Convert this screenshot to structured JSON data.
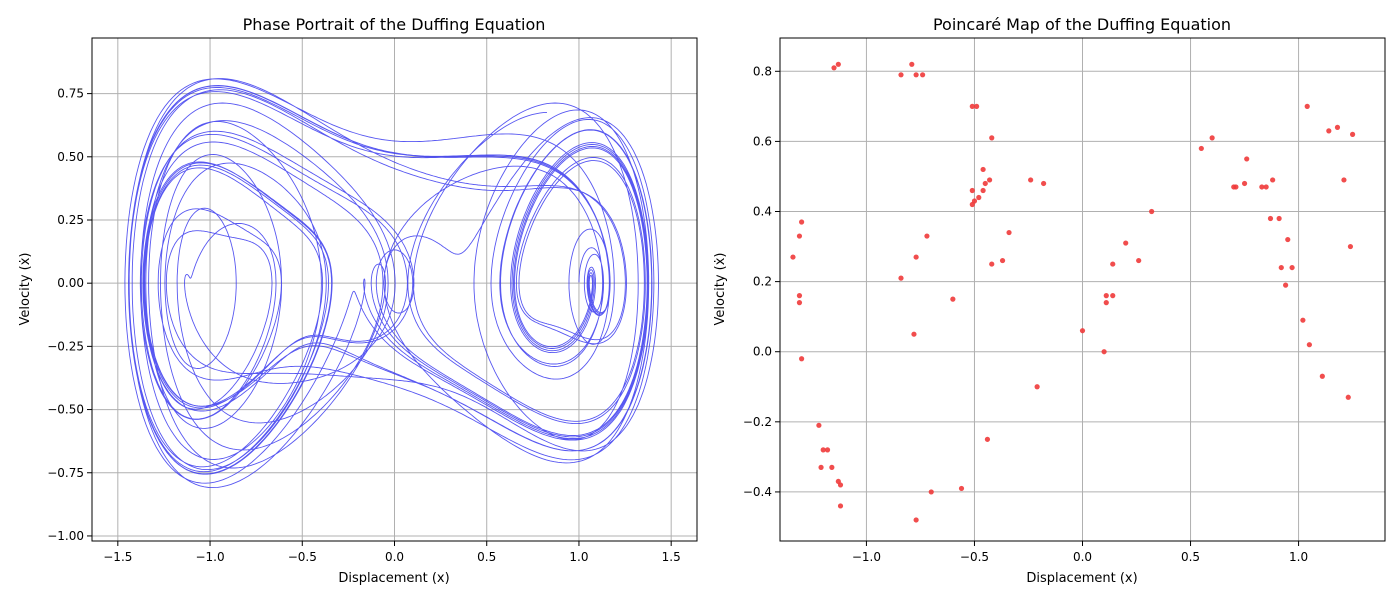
{
  "colors": {
    "trajectory": "#3a3aef",
    "points": "#ef3a3a",
    "grid": "#b0b0b0",
    "axes": "#000000"
  },
  "chart_data": [
    {
      "type": "line",
      "title": "Phase Portrait of the Duffing Equation",
      "xlabel": "Displacement (x)",
      "ylabel": "Velocity (ẋ)",
      "xlim": [
        -1.64,
        1.64
      ],
      "ylim": [
        -1.02,
        0.97
      ],
      "xticks": [
        -1.5,
        -1.0,
        -0.5,
        0.0,
        0.5,
        1.0,
        1.5
      ],
      "xtick_labels": [
        "−1.5",
        "−1.0",
        "−0.5",
        "0.0",
        "0.5",
        "1.0",
        "1.5"
      ],
      "yticks": [
        -1.0,
        -0.75,
        -0.5,
        -0.25,
        0.0,
        0.25,
        0.5,
        0.75
      ],
      "ytick_labels": [
        "−1.00",
        "−0.75",
        "−0.50",
        "−0.25",
        "0.00",
        "0.25",
        "0.50",
        "0.75"
      ],
      "grid": true,
      "series": [
        {
          "description_points": [
            [
              -1.0,
              0.0
            ],
            [
              -0.88,
              0.6
            ],
            [
              -0.3,
              0.55
            ],
            [
              0.3,
              0.6
            ],
            [
              1.1,
              0.8
            ],
            [
              1.45,
              0.0
            ],
            [
              1.1,
              -0.8
            ],
            [
              0.3,
              -0.55
            ],
            [
              -0.3,
              -0.55
            ],
            [
              -0.9,
              -0.93
            ],
            [
              -1.42,
              -0.1
            ],
            [
              -1.0,
              0.0
            ]
          ]
        }
      ]
    },
    {
      "type": "scatter",
      "title": "Poincaré Map of the Duffing Equation",
      "xlabel": "Displacement (x)",
      "ylabel": "Velocity (ẋ)",
      "xlim": [
        -1.4,
        1.4
      ],
      "ylim": [
        -0.54,
        0.895
      ],
      "xticks": [
        -1.0,
        -0.5,
        0.0,
        0.5,
        1.0
      ],
      "xtick_labels": [
        "−1.0",
        "−0.5",
        "0.0",
        "0.5",
        "1.0"
      ],
      "yticks": [
        -0.4,
        -0.2,
        0.0,
        0.2,
        0.4,
        0.6,
        0.8
      ],
      "ytick_labels": [
        "−0.4",
        "−0.2",
        "0.0",
        "0.2",
        "0.4",
        "0.6",
        "0.8"
      ],
      "grid": true,
      "points": [
        [
          -1.13,
          0.82
        ],
        [
          -1.15,
          0.81
        ],
        [
          -0.79,
          0.82
        ],
        [
          -0.84,
          0.79
        ],
        [
          -0.77,
          0.79
        ],
        [
          -0.74,
          0.79
        ],
        [
          -0.51,
          0.7
        ],
        [
          -0.49,
          0.7
        ],
        [
          -0.42,
          0.61
        ],
        [
          -0.24,
          0.49
        ],
        [
          -0.18,
          0.48
        ],
        [
          -0.43,
          0.49
        ],
        [
          -0.45,
          0.48
        ],
        [
          -0.46,
          0.52
        ],
        [
          -0.51,
          0.46
        ],
        [
          -0.46,
          0.46
        ],
        [
          -0.48,
          0.44
        ],
        [
          -0.5,
          0.43
        ],
        [
          -0.51,
          0.42
        ],
        [
          -0.34,
          0.34
        ],
        [
          -0.37,
          0.26
        ],
        [
          -0.42,
          0.25
        ],
        [
          -1.3,
          0.37
        ],
        [
          -1.31,
          0.33
        ],
        [
          -1.34,
          0.27
        ],
        [
          -1.31,
          0.16
        ],
        [
          -1.31,
          0.14
        ],
        [
          -1.3,
          -0.02
        ],
        [
          -0.72,
          0.33
        ],
        [
          -0.77,
          0.27
        ],
        [
          -0.84,
          0.21
        ],
        [
          -0.6,
          0.15
        ],
        [
          -0.78,
          0.05
        ],
        [
          -1.22,
          -0.21
        ],
        [
          -1.2,
          -0.28
        ],
        [
          -1.18,
          -0.28
        ],
        [
          -1.21,
          -0.33
        ],
        [
          -1.16,
          -0.33
        ],
        [
          -1.13,
          -0.37
        ],
        [
          -1.12,
          -0.38
        ],
        [
          -1.12,
          -0.44
        ],
        [
          -0.7,
          -0.4
        ],
        [
          -0.56,
          -0.39
        ],
        [
          -0.77,
          -0.48
        ],
        [
          -0.44,
          -0.25
        ],
        [
          -0.21,
          -0.1
        ],
        [
          0.0,
          0.06
        ],
        [
          0.1,
          0.0
        ],
        [
          0.11,
          0.16
        ],
        [
          0.14,
          0.16
        ],
        [
          0.11,
          0.14
        ],
        [
          0.14,
          0.25
        ],
        [
          0.2,
          0.31
        ],
        [
          0.26,
          0.26
        ],
        [
          0.32,
          0.4
        ],
        [
          0.55,
          0.58
        ],
        [
          0.6,
          0.61
        ],
        [
          0.76,
          0.55
        ],
        [
          0.7,
          0.47
        ],
        [
          0.71,
          0.47
        ],
        [
          0.75,
          0.48
        ],
        [
          0.83,
          0.47
        ],
        [
          0.85,
          0.47
        ],
        [
          0.88,
          0.49
        ],
        [
          0.87,
          0.38
        ],
        [
          0.91,
          0.38
        ],
        [
          0.95,
          0.32
        ],
        [
          0.92,
          0.24
        ],
        [
          0.97,
          0.24
        ],
        [
          0.94,
          0.19
        ],
        [
          1.04,
          0.7
        ],
        [
          1.14,
          0.63
        ],
        [
          1.18,
          0.64
        ],
        [
          1.25,
          0.62
        ],
        [
          1.21,
          0.49
        ],
        [
          1.24,
          0.3
        ],
        [
          1.02,
          0.09
        ],
        [
          1.05,
          0.02
        ],
        [
          1.11,
          -0.07
        ],
        [
          1.23,
          -0.13
        ]
      ]
    }
  ]
}
